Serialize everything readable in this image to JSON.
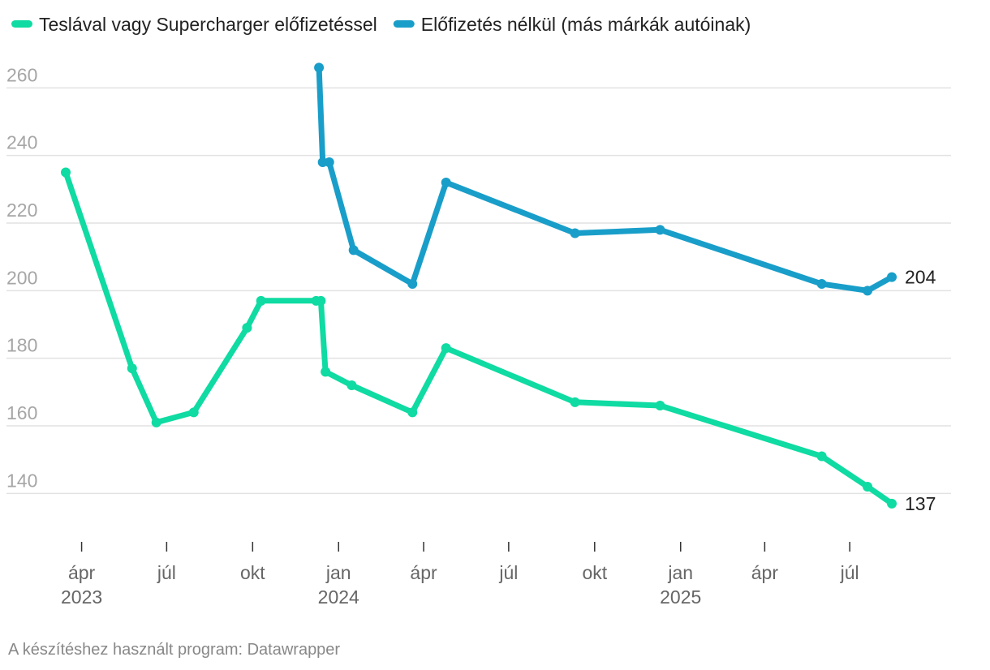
{
  "chart_data": {
    "type": "line",
    "title": "",
    "xlabel": "",
    "ylabel": "",
    "ylim": [
      130,
      268
    ],
    "yticks": [
      140,
      160,
      180,
      200,
      220,
      240,
      260
    ],
    "grid": true,
    "legend_position": "top-left",
    "x_ticks": [
      {
        "date": "2023-04-01",
        "label": "ápr",
        "year": "2023"
      },
      {
        "date": "2023-07-01",
        "label": "júl",
        "year": ""
      },
      {
        "date": "2023-10-01",
        "label": "okt",
        "year": ""
      },
      {
        "date": "2024-01-01",
        "label": "jan",
        "year": "2024"
      },
      {
        "date": "2024-04-01",
        "label": "ápr",
        "year": ""
      },
      {
        "date": "2024-07-01",
        "label": "júl",
        "year": ""
      },
      {
        "date": "2024-10-01",
        "label": "okt",
        "year": ""
      },
      {
        "date": "2025-01-01",
        "label": "jan",
        "year": "2025"
      },
      {
        "date": "2025-04-01",
        "label": "ápr",
        "year": ""
      },
      {
        "date": "2025-07-01",
        "label": "júl",
        "year": ""
      }
    ],
    "series": [
      {
        "name": "Teslával vagy Supercharger előfizetéssel",
        "color": "#0fdba2",
        "end_label": "137",
        "points": [
          {
            "x": "2023-03-15",
            "y": 235
          },
          {
            "x": "2023-05-25",
            "y": 177
          },
          {
            "x": "2023-06-20",
            "y": 161
          },
          {
            "x": "2023-07-30",
            "y": 164
          },
          {
            "x": "2023-09-25",
            "y": 189
          },
          {
            "x": "2023-10-10",
            "y": 197
          },
          {
            "x": "2023-12-08",
            "y": 197
          },
          {
            "x": "2023-12-13",
            "y": 197
          },
          {
            "x": "2023-12-18",
            "y": 176
          },
          {
            "x": "2024-01-15",
            "y": 172
          },
          {
            "x": "2024-03-20",
            "y": 164
          },
          {
            "x": "2024-04-25",
            "y": 183
          },
          {
            "x": "2024-09-10",
            "y": 167
          },
          {
            "x": "2024-12-10",
            "y": 166
          },
          {
            "x": "2025-06-01",
            "y": 151
          },
          {
            "x": "2025-07-20",
            "y": 142
          },
          {
            "x": "2025-08-15",
            "y": 137
          }
        ]
      },
      {
        "name": "Előfizetés nélkül (más márkák autóinak)",
        "color": "#199ec9",
        "end_label": "204",
        "points": [
          {
            "x": "2023-12-11",
            "y": 266
          },
          {
            "x": "2023-12-15",
            "y": 238
          },
          {
            "x": "2023-12-22",
            "y": 238
          },
          {
            "x": "2024-01-17",
            "y": 212
          },
          {
            "x": "2024-03-20",
            "y": 202
          },
          {
            "x": "2024-04-25",
            "y": 232
          },
          {
            "x": "2024-09-10",
            "y": 217
          },
          {
            "x": "2024-12-10",
            "y": 218
          },
          {
            "x": "2025-06-01",
            "y": 202
          },
          {
            "x": "2025-07-20",
            "y": 200
          },
          {
            "x": "2025-08-15",
            "y": 204
          }
        ]
      }
    ]
  },
  "source": "A készítéshez használt program: Datawrapper"
}
